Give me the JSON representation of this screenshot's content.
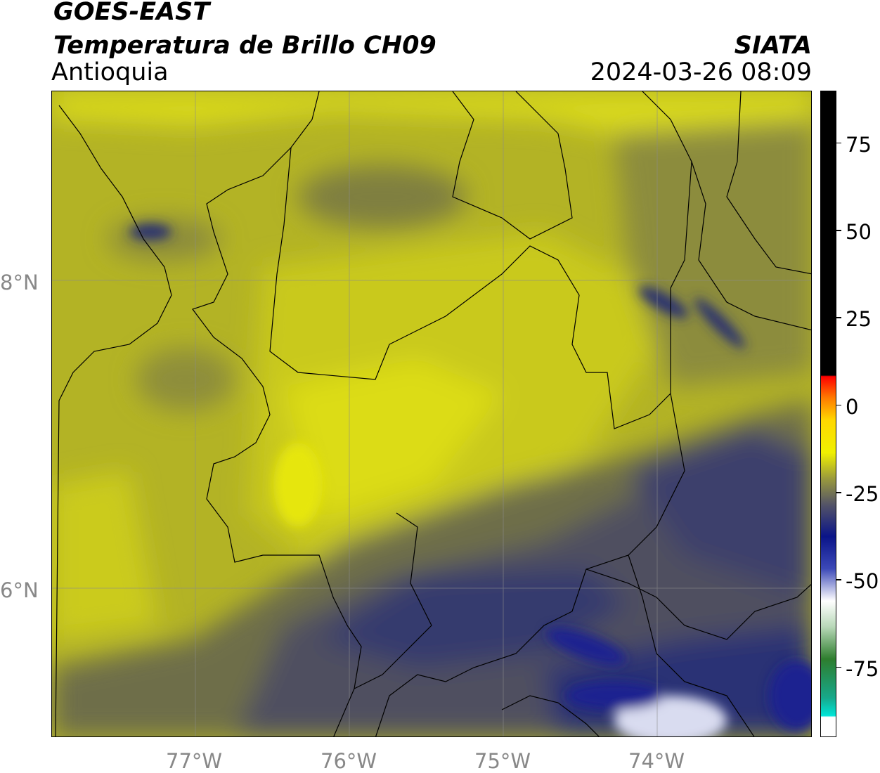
{
  "header": {
    "satellite": "GOES-EAST",
    "product": "Temperatura de Brillo CH09",
    "region": "Antioquia",
    "agency": "SIATA",
    "datetime": "2024-03-26 08:09"
  },
  "map": {
    "lon_labels": [
      "77°W",
      "76°W",
      "75°W",
      "74°W"
    ],
    "lat_labels": [
      "8°N",
      "6°N"
    ],
    "grid": true
  },
  "colorbar": {
    "tick_labels": [
      "75",
      "50",
      "25",
      "0",
      "-25",
      "-50",
      "-75"
    ],
    "tick_values": [
      75,
      50,
      25,
      0,
      -25,
      -50,
      -75
    ],
    "range": [
      -95,
      90
    ],
    "colors": {
      "warm": "#000000",
      "red": "#ff2a00",
      "orange": "#ff8c00",
      "yellow": "#f0f000",
      "olive": "#8a8a3a",
      "navy": "#0f1a7a",
      "white": "#ffffff",
      "green": "#2e7d2e",
      "cyan": "#00e5d8"
    }
  }
}
